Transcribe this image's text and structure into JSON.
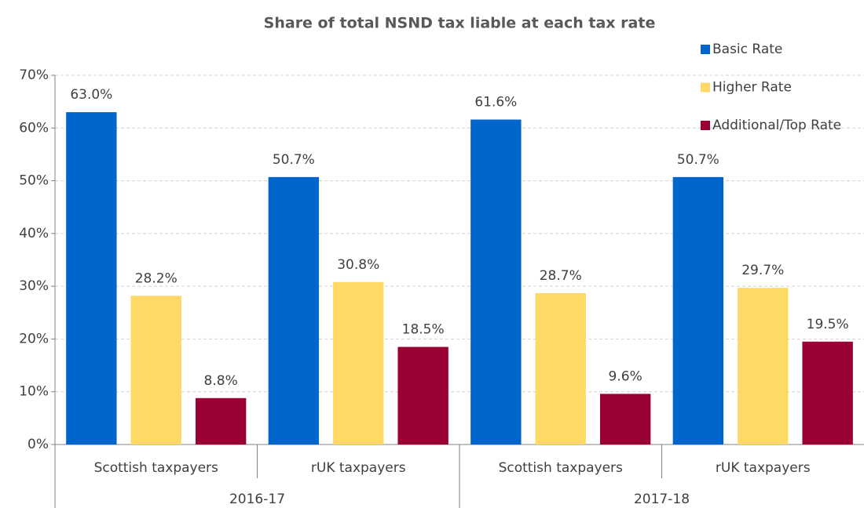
{
  "chart_data": {
    "type": "bar",
    "title": "Share of total NSND tax liable at each tax rate",
    "categories": [
      "Scottish taxpayers",
      "rUK taxpayers",
      "Scottish taxpayers",
      "rUK taxpayers"
    ],
    "category_groups": [
      "2016-17",
      "2017-18"
    ],
    "series": [
      {
        "name": "Basic Rate",
        "color": "#0066cc",
        "values": [
          63.0,
          50.7,
          61.6,
          50.7
        ],
        "value_labels": [
          "63.0%",
          "50.7%",
          "61.6%",
          "50.7%"
        ]
      },
      {
        "name": "Higher Rate",
        "color": "#ffd966",
        "values": [
          28.2,
          30.8,
          28.7,
          29.7
        ],
        "value_labels": [
          "28.2%",
          "30.8%",
          "28.7%",
          "29.7%"
        ]
      },
      {
        "name": "Additional/Top Rate",
        "color": "#990033",
        "values": [
          8.8,
          18.5,
          9.6,
          19.5
        ],
        "value_labels": [
          "8.8%",
          "18.5%",
          "9.6%",
          "19.5%"
        ]
      }
    ],
    "ylim": [
      0,
      70
    ],
    "yticks": [
      {
        "value": 0,
        "label": "0%"
      },
      {
        "value": 10,
        "label": "10%"
      },
      {
        "value": 20,
        "label": "20%"
      },
      {
        "value": 30,
        "label": "30%"
      },
      {
        "value": 40,
        "label": "40%"
      },
      {
        "value": 50,
        "label": "50%"
      },
      {
        "value": 60,
        "label": "60%"
      },
      {
        "value": 70,
        "label": "70%"
      }
    ],
    "grid": true,
    "legend": "top-right"
  }
}
